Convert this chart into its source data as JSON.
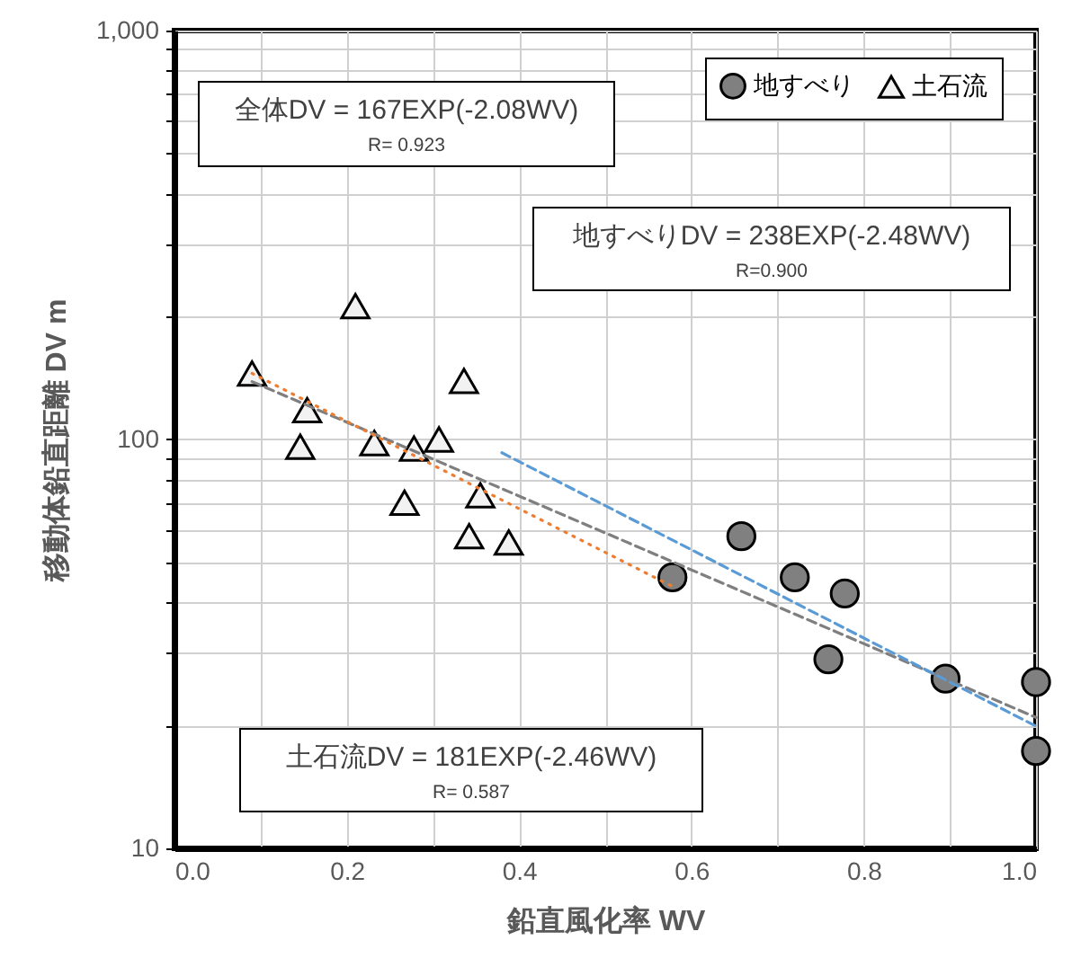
{
  "chart_data": {
    "type": "scatter",
    "xlabel": "鉛直風化率 WV",
    "ylabel": "移動体鉛直距離 DV m",
    "xlim": [
      0,
      1
    ],
    "ylim": [
      10,
      1000
    ],
    "log": "y",
    "grid": true,
    "legend": "top right",
    "xticks": [
      {
        "value": 0,
        "label": "0.0"
      },
      {
        "value": 0.1,
        "label": null
      },
      {
        "value": 0.2,
        "label": "0.2"
      },
      {
        "value": 0.3,
        "label": null
      },
      {
        "value": 0.4,
        "label": "0.4"
      },
      {
        "value": 0.5,
        "label": null
      },
      {
        "value": 0.6,
        "label": "0.6"
      },
      {
        "value": 0.7,
        "label": null
      },
      {
        "value": 0.8,
        "label": "0.8"
      },
      {
        "value": 0.9,
        "label": null
      },
      {
        "value": 1,
        "label": "1.0"
      }
    ],
    "yticks": [
      10,
      {
        "value": 20,
        "label": null
      },
      {
        "value": 30,
        "label": null
      },
      {
        "value": 40,
        "label": null
      },
      {
        "value": 50,
        "label": null
      },
      {
        "value": 60,
        "label": null
      },
      {
        "value": 70,
        "label": null
      },
      {
        "value": 80,
        "label": null
      },
      {
        "value": 90,
        "label": null
      },
      100,
      {
        "value": 200,
        "label": null
      },
      {
        "value": 300,
        "label": null
      },
      {
        "value": 400,
        "label": null
      },
      {
        "value": 500,
        "label": null
      },
      {
        "value": 600,
        "label": null
      },
      {
        "value": 700,
        "label": null
      },
      {
        "value": 800,
        "label": null
      },
      {
        "value": 900,
        "label": null
      },
      {
        "value": 1000,
        "label": "1,000"
      }
    ],
    "series": [
      {
        "name": "地すべり",
        "marker": "circle",
        "color": "#808080",
        "x": [
          0.578,
          0.658,
          0.72,
          0.778,
          0.759,
          0.895,
          1.0,
          1.0
        ],
        "values": [
          46,
          58,
          46,
          42,
          29,
          26,
          25.5,
          17.3
        ]
      },
      {
        "name": "土石流",
        "marker": "triangle",
        "color": "#f2f2f2",
        "x": [
          0.09,
          0.21,
          0.154,
          0.146,
          0.232,
          0.267,
          0.278,
          0.307,
          0.336,
          0.355,
          0.342,
          0.388
        ],
        "values": [
          145,
          212,
          118,
          96,
          98,
          70,
          95,
          100,
          139,
          73,
          58,
          56
        ]
      },
      {
        "type": "line",
        "line_style": "dashed",
        "color": "#7f7f7f",
        "x": [
          0.09,
          1.0
        ],
        "values": [
          138.5,
          20.9
        ]
      },
      {
        "type": "line",
        "line_style": "dotted",
        "color": "#ed7d31",
        "x": [
          0.09,
          0.58
        ],
        "values": [
          145.1,
          43.5
        ]
      },
      {
        "type": "line",
        "line_style": "dashed",
        "color": "#5b9bd5",
        "x": [
          0.38,
          1.0
        ],
        "values": [
          92.8,
          19.9
        ]
      }
    ],
    "annotations": [
      "全体DV = 167EXP(-2.08WV)",
      "R= 0.923",
      "地すべりDV = 238EXP(-2.48WV)",
      "R=0.900",
      "土石流DV = 181EXP(-2.46WV)",
      "R= 0.587"
    ]
  }
}
